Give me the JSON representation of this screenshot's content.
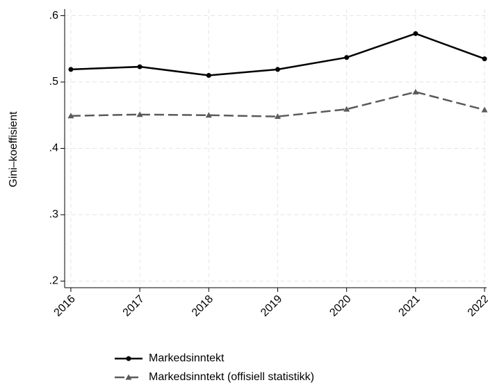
{
  "chart_data": {
    "type": "line",
    "y_label": "Gini–koeffisient",
    "x": [
      2016,
      2017,
      2018,
      2019,
      2020,
      2021,
      2022
    ],
    "series": [
      {
        "name": "Markedsinntekt",
        "color": "#000000",
        "dash": "solid",
        "marker": "circle",
        "values": [
          0.519,
          0.523,
          0.51,
          0.519,
          0.537,
          0.573,
          0.535
        ]
      },
      {
        "name": "Markedsinntekt (offisiell statistikk)",
        "color": "#5a5a5a",
        "dash": "dashed",
        "marker": "triangle",
        "values": [
          0.449,
          0.451,
          0.45,
          0.448,
          0.459,
          0.485,
          0.458
        ]
      }
    ],
    "xlim": [
      2015.91,
      2022.03
    ],
    "xticks": [
      2016,
      2017,
      2018,
      2019,
      2020,
      2021,
      2022
    ],
    "ylim": [
      0.19,
      0.61
    ],
    "yticks": [
      {
        "value": 0.2,
        "label": ".2"
      },
      {
        "value": 0.3,
        "label": ".3"
      },
      {
        "value": 0.4,
        "label": ".4"
      },
      {
        "value": 0.5,
        "label": ".5"
      },
      {
        "value": 0.6,
        "label": ".6"
      }
    ],
    "grid": true,
    "legend": "bottom"
  }
}
